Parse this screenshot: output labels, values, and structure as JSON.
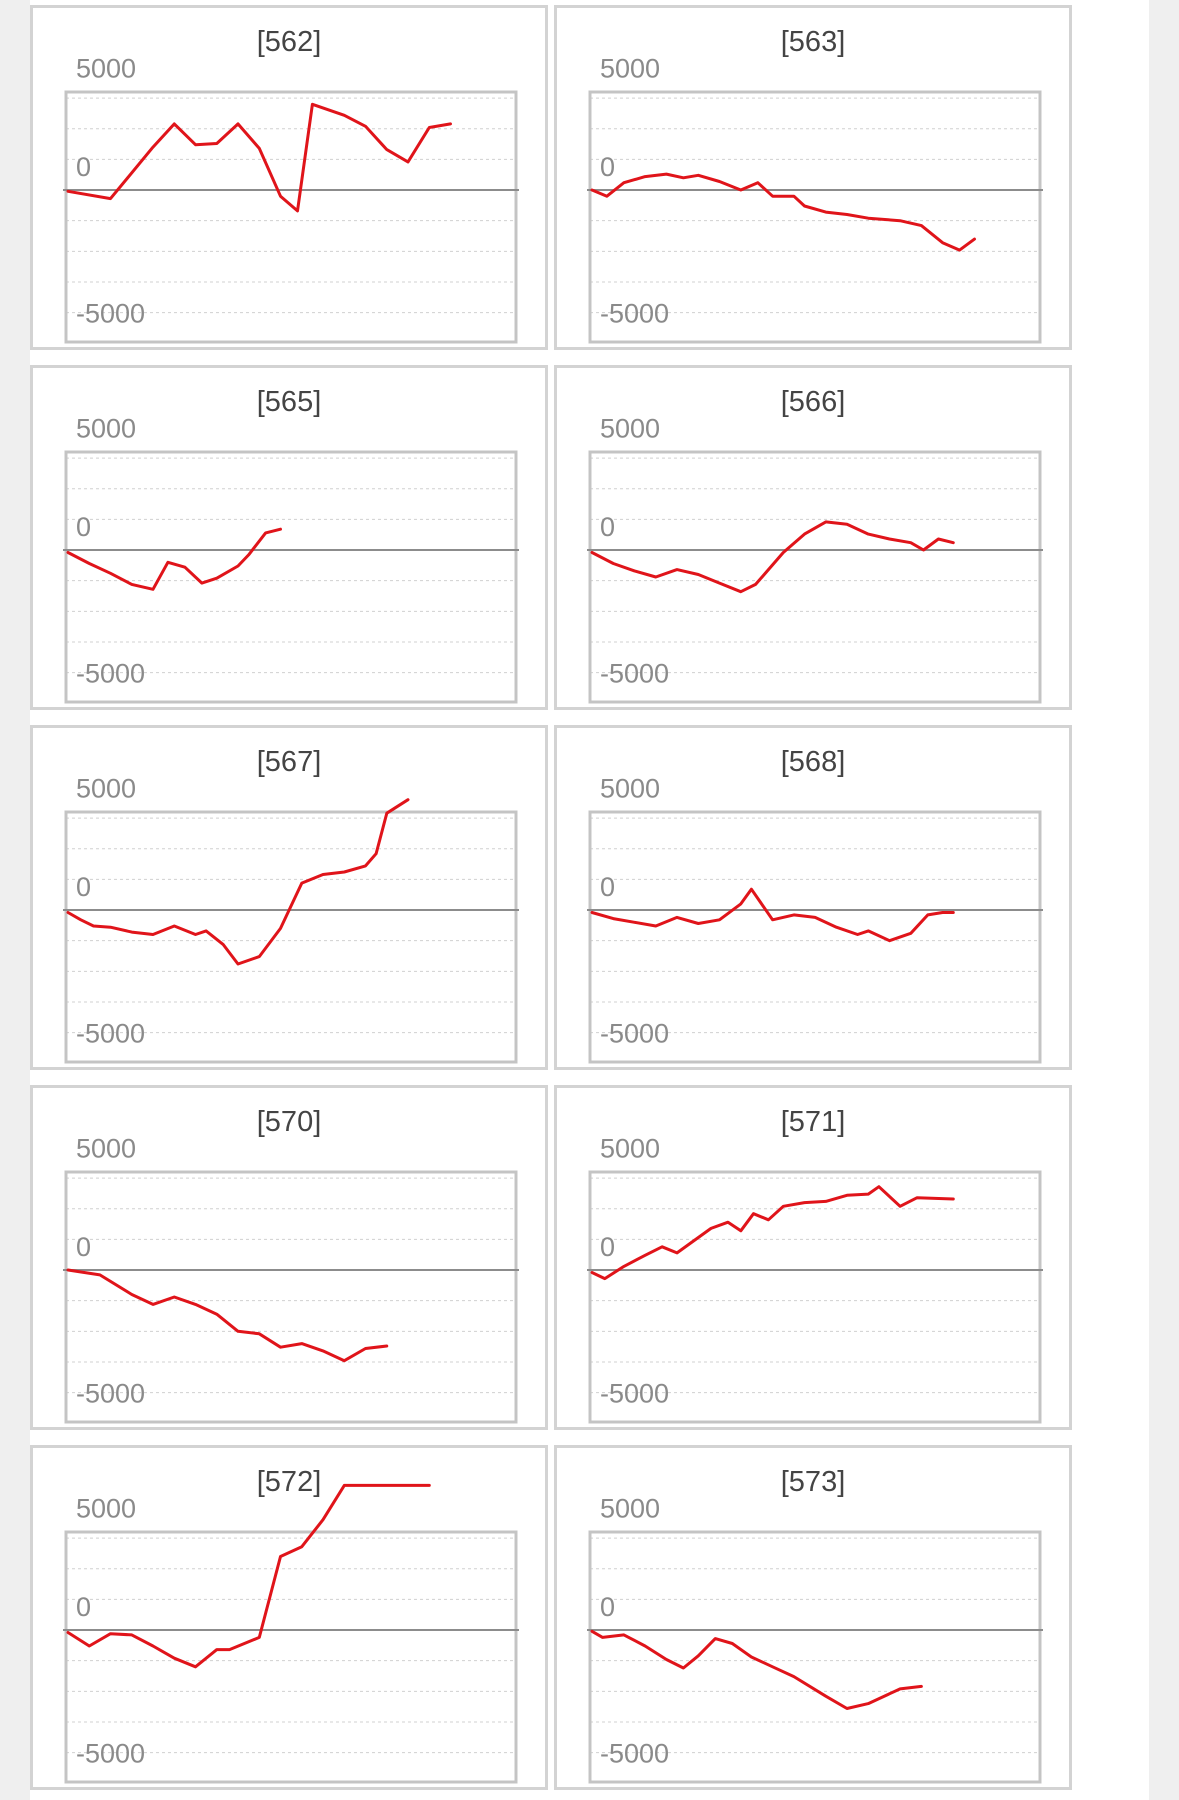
{
  "chart_data": [
    {
      "type": "line",
      "title": "[562]",
      "yticks": [
        5000,
        0,
        -5000
      ],
      "ylim": [
        -6200,
        4000
      ],
      "baseline": 0,
      "color": "#e0141a",
      "values": [
        -50,
        -350,
        1750,
        2700,
        1850,
        1900,
        2700,
        1700,
        -250,
        -850,
        3500,
        3050,
        2600,
        1650,
        1150,
        2550,
        2700
      ],
      "x": [
        0,
        2,
        4,
        5,
        6,
        7,
        8,
        9,
        10,
        10.8,
        11.5,
        13,
        14,
        15,
        16,
        17,
        18
      ]
    },
    {
      "type": "line",
      "title": "[563]",
      "yticks": [
        5000,
        0,
        -5000
      ],
      "ylim": [
        -6200,
        4000
      ],
      "baseline": 0,
      "color": "#e0141a",
      "values": [
        0,
        -250,
        300,
        550,
        650,
        500,
        600,
        350,
        0,
        300,
        -250,
        -250,
        -650,
        -900,
        -1000,
        -1150,
        -1250,
        -1450,
        -2150,
        -2450,
        -2000
      ],
      "x": [
        0,
        0.7,
        1.5,
        2.5,
        3.5,
        4.3,
        5,
        6,
        7,
        7.8,
        8.5,
        9.5,
        10,
        11,
        12,
        13,
        14.5,
        15.5,
        16.5,
        17.3,
        18
      ]
    },
    {
      "type": "line",
      "title": "[565]",
      "yticks": [
        5000,
        0,
        -5000
      ],
      "ylim": [
        -6200,
        4000
      ],
      "baseline": 0,
      "color": "#e0141a",
      "values": [
        -100,
        -550,
        -950,
        -1400,
        -1600,
        -500,
        -700,
        -1350,
        -1150,
        -650,
        -200,
        700,
        850
      ],
      "x": [
        0,
        1,
        2,
        3,
        4,
        4.7,
        5.5,
        6.3,
        7,
        8,
        8.5,
        9.3,
        10
      ]
    },
    {
      "type": "line",
      "title": "[566]",
      "yticks": [
        5000,
        0,
        -5000
      ],
      "ylim": [
        -6200,
        4000
      ],
      "baseline": 0,
      "color": "#e0141a",
      "values": [
        -100,
        -550,
        -850,
        -1100,
        -800,
        -1000,
        -1350,
        -1700,
        -1400,
        -100,
        650,
        1150,
        1050,
        650,
        450,
        300,
        0,
        450,
        300
      ],
      "x": [
        0,
        1,
        2,
        3,
        4,
        5,
        6,
        7,
        7.7,
        9,
        10,
        11,
        12,
        13,
        14,
        15,
        15.6,
        16.3,
        17
      ]
    },
    {
      "type": "line",
      "title": "[567]",
      "yticks": [
        5000,
        0,
        -5000
      ],
      "ylim": [
        -6200,
        4000
      ],
      "baseline": 0,
      "color": "#e0141a",
      "values": [
        -100,
        -400,
        -650,
        -700,
        -900,
        -1000,
        -650,
        -1000,
        -850,
        -1400,
        -2200,
        -1900,
        -750,
        1100,
        1450,
        1550,
        1800,
        2300,
        3950,
        4500
      ],
      "x": [
        0,
        0.6,
        1.2,
        2,
        3,
        4,
        5,
        6,
        6.5,
        7.3,
        8,
        9,
        10,
        11,
        12,
        13,
        14,
        14.5,
        15,
        16
      ]
    },
    {
      "type": "line",
      "title": "[568]",
      "yticks": [
        5000,
        0,
        -5000
      ],
      "ylim": [
        -6200,
        4000
      ],
      "baseline": 0,
      "color": "#e0141a",
      "values": [
        -100,
        -350,
        -500,
        -650,
        -300,
        -550,
        -400,
        250,
        850,
        -400,
        -200,
        -300,
        -700,
        -1000,
        -850,
        -1250,
        -950,
        -200,
        -100,
        -100
      ],
      "x": [
        0,
        1,
        2,
        3,
        4,
        5,
        6,
        7,
        7.5,
        8.5,
        9.5,
        10.5,
        11.5,
        12.5,
        13,
        14,
        15,
        15.8,
        16.5,
        17
      ]
    },
    {
      "type": "line",
      "title": "[570]",
      "yticks": [
        5000,
        0,
        -5000
      ],
      "ylim": [
        -6200,
        4000
      ],
      "baseline": 0,
      "color": "#e0141a",
      "values": [
        0,
        -200,
        -1000,
        -1400,
        -1100,
        -1400,
        -1800,
        -2500,
        -2600,
        -3150,
        -3000,
        -3300,
        -3700,
        -3200,
        -3100
      ],
      "x": [
        0,
        1.5,
        3,
        4,
        5,
        6,
        7,
        8,
        9,
        10,
        11,
        12,
        13,
        14,
        15
      ]
    },
    {
      "type": "line",
      "title": "[571]",
      "yticks": [
        5000,
        0,
        -5000
      ],
      "ylim": [
        -6200,
        4000
      ],
      "baseline": 0,
      "color": "#e0141a",
      "values": [
        -100,
        -350,
        150,
        600,
        950,
        700,
        1200,
        1700,
        1950,
        1600,
        2300,
        2050,
        2600,
        2750,
        2800,
        3050,
        3100,
        3400,
        2600,
        2950,
        2900
      ],
      "x": [
        0,
        0.6,
        1.5,
        2.5,
        3.3,
        4,
        4.8,
        5.6,
        6.4,
        7,
        7.6,
        8.3,
        9,
        10,
        11,
        12,
        13,
        13.5,
        14.5,
        15.3,
        17
      ]
    },
    {
      "type": "line",
      "title": "[572]",
      "yticks": [
        5000,
        0,
        -5000
      ],
      "ylim": [
        -6200,
        4000
      ],
      "baseline": 0,
      "color": "#e0141a",
      "values": [
        -100,
        -650,
        -150,
        -200,
        -650,
        -1150,
        -1500,
        -800,
        -800,
        -300,
        3000,
        3400,
        4500,
        5900,
        5900
      ],
      "x": [
        0,
        1,
        2,
        3,
        4,
        5,
        6,
        7,
        7.6,
        9,
        10,
        11,
        12,
        13,
        17
      ]
    },
    {
      "type": "line",
      "title": "[573]",
      "yticks": [
        5000,
        0,
        -5000
      ],
      "ylim": [
        -6200,
        4000
      ],
      "baseline": 0,
      "color": "#e0141a",
      "values": [
        -50,
        -300,
        -200,
        -650,
        -1200,
        -1550,
        -1050,
        -350,
        -550,
        -1100,
        -1500,
        -1900,
        -2700,
        -3200,
        -3000,
        -2400,
        -2300
      ],
      "x": [
        0,
        0.5,
        1.5,
        2.5,
        3.5,
        4.3,
        5,
        5.8,
        6.6,
        7.5,
        8.5,
        9.5,
        11,
        12,
        13,
        14.5,
        15.5
      ]
    }
  ]
}
